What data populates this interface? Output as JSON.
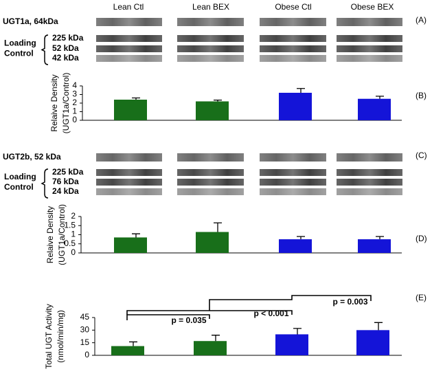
{
  "columns": [
    "Lean Ctl",
    "Lean BEX",
    "Obese Ctl",
    "Obese BEX"
  ],
  "blots": [
    {
      "protein": "UGT1a, 64kDa",
      "panel": "(A)",
      "loading_label": [
        "Loading",
        "Control"
      ],
      "loading_kda": [
        "225 kDa",
        "52 kDa",
        "42 kDa"
      ]
    },
    {
      "protein": "UGT2b,  52 kDa",
      "panel": "(C)",
      "loading_label": [
        "Loading",
        "Control"
      ],
      "loading_kda": [
        "225 kDa",
        "76 kDa",
        "24 kDa"
      ]
    }
  ],
  "chart_data": [
    {
      "type": "bar",
      "panel": "(B)",
      "ylabel": [
        "Relaive Density",
        "(UGT1a/Control)"
      ],
      "categories": [
        null,
        null,
        null,
        null
      ],
      "values": [
        2.4,
        2.2,
        3.2,
        2.5
      ],
      "errors": [
        0.2,
        0.15,
        0.5,
        0.3
      ],
      "colors": [
        "#186f1a",
        "#186f1a",
        "#1414d8",
        "#1414d8"
      ],
      "ylim": [
        0,
        4
      ],
      "yticks": [
        0,
        1,
        2,
        3,
        4
      ]
    },
    {
      "type": "bar",
      "panel": "(D)",
      "ylabel": [
        "Relaive Density",
        "(UGT1a/Control)"
      ],
      "categories": [
        null,
        null,
        null,
        null
      ],
      "values": [
        0.85,
        1.15,
        0.75,
        0.75
      ],
      "errors": [
        0.2,
        0.5,
        0.15,
        0.15
      ],
      "colors": [
        "#186f1a",
        "#186f1a",
        "#1414d8",
        "#1414d8"
      ],
      "ylim": [
        0,
        2
      ],
      "yticks": [
        0,
        0.5,
        1,
        1.5,
        2
      ]
    },
    {
      "type": "bar",
      "panel": "(E)",
      "ylabel": [
        "Total UGT Activity",
        "(nmol/min/mg)"
      ],
      "categories": [
        null,
        null,
        null,
        null
      ],
      "values": [
        11,
        17,
        25,
        30
      ],
      "errors": [
        5,
        7,
        7,
        9
      ],
      "colors": [
        "#186f1a",
        "#186f1a",
        "#1414d8",
        "#1414d8"
      ],
      "ylim": [
        0,
        45
      ],
      "yticks": [
        0,
        15,
        30,
        45
      ],
      "annotations": [
        "p = 0.035",
        "p < 0.001",
        "p = 0.003"
      ]
    }
  ]
}
